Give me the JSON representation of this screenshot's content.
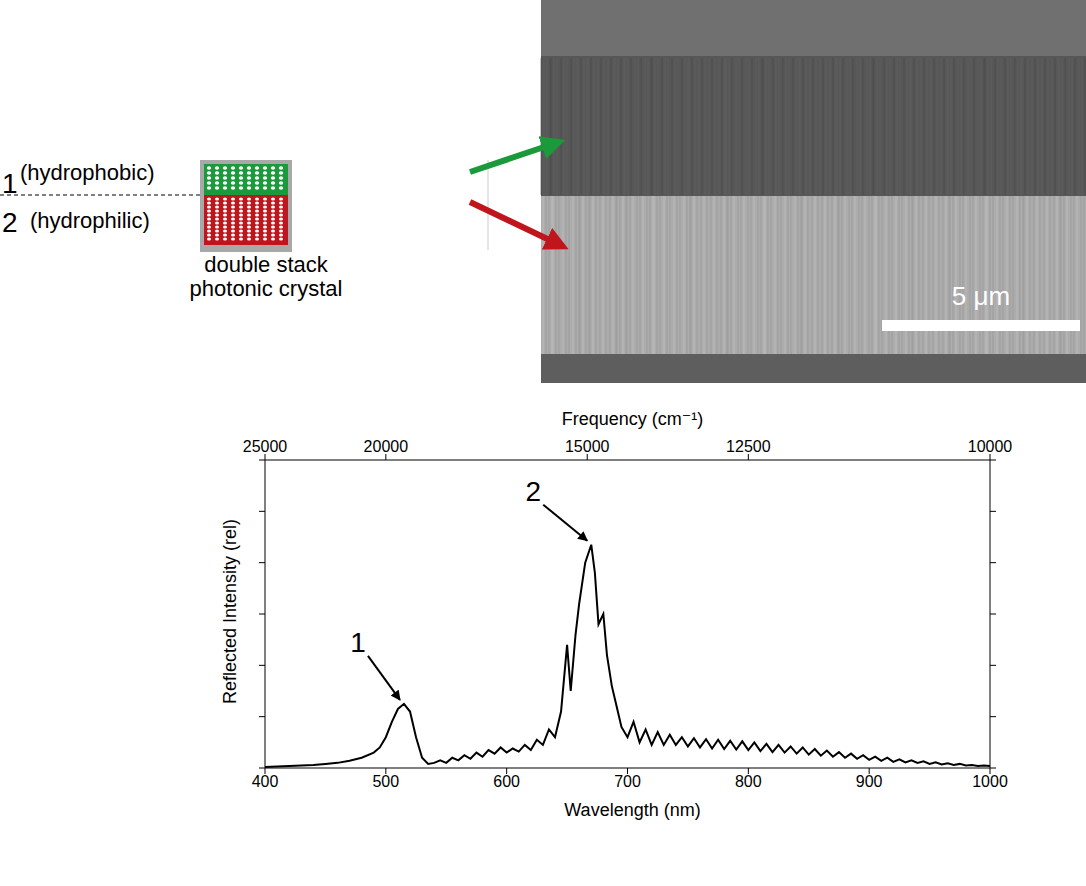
{
  "diagram": {
    "schematic": {
      "layers": [
        {
          "number": "1",
          "label": "(hydrophobic)"
        },
        {
          "number": "2",
          "label": "(hydrophilic)"
        }
      ],
      "caption": [
        "double stack",
        "photonic crystal"
      ]
    },
    "micrograph": {
      "scale_bar": "5 μm"
    }
  },
  "chart_data": {
    "type": "line",
    "xlabel": "Wavelength (nm)",
    "ylabel": "Reflected Intensity (rel)",
    "x2label": "Frequency (cm⁻¹)",
    "xlim": [
      400,
      1000
    ],
    "xticks": [
      400,
      500,
      600,
      700,
      800,
      900,
      1000
    ],
    "x2ticks": [
      25000,
      20000,
      15000,
      12500,
      10000
    ],
    "ylim": [
      0,
      6
    ],
    "yticks": [
      0,
      1,
      2,
      3,
      4,
      5,
      6
    ],
    "tick_labels": "x",
    "grid": false,
    "color": "#000000",
    "annotations": [
      {
        "text": "1",
        "x": 515,
        "y": 1.25
      },
      {
        "text": "2",
        "x": 670,
        "y": 4.35
      }
    ],
    "x": [
      400,
      410,
      420,
      430,
      440,
      450,
      460,
      470,
      480,
      490,
      495,
      500,
      505,
      510,
      515,
      520,
      525,
      530,
      535,
      540,
      545,
      550,
      555,
      560,
      565,
      570,
      575,
      580,
      585,
      590,
      595,
      600,
      605,
      610,
      615,
      620,
      625,
      630,
      635,
      640,
      645,
      650,
      653,
      657,
      660,
      665,
      670,
      673,
      676,
      680,
      683,
      687,
      690,
      695,
      700,
      705,
      710,
      715,
      720,
      725,
      730,
      735,
      740,
      745,
      750,
      755,
      760,
      765,
      770,
      775,
      780,
      785,
      790,
      795,
      800,
      805,
      810,
      815,
      820,
      825,
      830,
      835,
      840,
      845,
      850,
      855,
      860,
      865,
      870,
      875,
      880,
      885,
      890,
      895,
      900,
      905,
      910,
      915,
      920,
      925,
      930,
      935,
      940,
      945,
      950,
      955,
      960,
      965,
      970,
      975,
      980,
      985,
      990,
      995,
      1000
    ],
    "values": [
      0.02,
      0.03,
      0.04,
      0.05,
      0.06,
      0.08,
      0.1,
      0.14,
      0.2,
      0.3,
      0.4,
      0.6,
      0.9,
      1.15,
      1.25,
      1.1,
      0.6,
      0.2,
      0.08,
      0.1,
      0.15,
      0.1,
      0.2,
      0.15,
      0.25,
      0.18,
      0.3,
      0.22,
      0.35,
      0.28,
      0.4,
      0.3,
      0.38,
      0.32,
      0.45,
      0.35,
      0.55,
      0.45,
      0.75,
      0.6,
      1.1,
      2.4,
      1.5,
      2.6,
      3.2,
      4.0,
      4.35,
      3.8,
      2.8,
      3.0,
      2.2,
      1.6,
      1.3,
      0.8,
      0.6,
      0.9,
      0.5,
      0.75,
      0.45,
      0.7,
      0.45,
      0.65,
      0.45,
      0.6,
      0.42,
      0.58,
      0.4,
      0.56,
      0.38,
      0.55,
      0.37,
      0.53,
      0.36,
      0.52,
      0.35,
      0.5,
      0.33,
      0.47,
      0.31,
      0.45,
      0.3,
      0.42,
      0.28,
      0.4,
      0.26,
      0.37,
      0.24,
      0.34,
      0.22,
      0.31,
      0.2,
      0.28,
      0.18,
      0.25,
      0.16,
      0.22,
      0.14,
      0.2,
      0.12,
      0.17,
      0.11,
      0.15,
      0.1,
      0.13,
      0.08,
      0.11,
      0.07,
      0.09,
      0.06,
      0.08,
      0.05,
      0.06,
      0.04,
      0.05,
      0.04
    ]
  }
}
